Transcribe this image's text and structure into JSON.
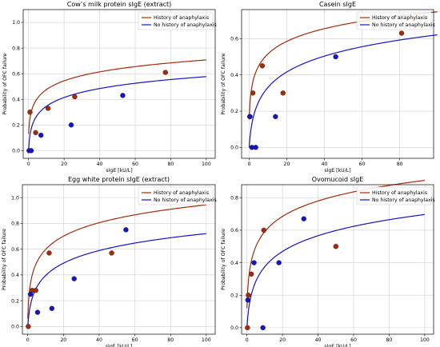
{
  "chart_data": [
    {
      "type": "scatter",
      "title": "Cow’s milk protein sIgE (extract)",
      "xlabel": "sIgE [kU/L]",
      "ylabel": "Probability of OFC failure",
      "xlim": [
        -3,
        105
      ],
      "ylim": [
        -0.06,
        1.1
      ],
      "xticks": [
        "0",
        "20",
        "40",
        "60",
        "80",
        "100"
      ],
      "yticks": [
        "0.0",
        "0.2",
        "0.4",
        "0.6",
        "0.8",
        "1.0"
      ],
      "grid": true,
      "legend_position": "top-right",
      "series": [
        {
          "name": "History of anaphylaxis",
          "color": "#a52a0a",
          "curve": {
            "a": 0.13,
            "b": 0.102,
            "x0": 0.35
          },
          "points": [
            {
              "x": 0.8,
              "y": 0.3
            },
            {
              "x": 4,
              "y": 0.14
            },
            {
              "x": 11,
              "y": 0.33
            },
            {
              "x": 26,
              "y": 0.42
            },
            {
              "x": 77,
              "y": 0.61
            }
          ]
        },
        {
          "name": "No history of anaphylaxis",
          "color": "#1414c8",
          "curve": {
            "a": 0.0,
            "b": 0.102,
            "x0": 0.35
          },
          "points": [
            {
              "x": 0.3,
              "y": 0.0
            },
            {
              "x": 1.5,
              "y": 0.0
            },
            {
              "x": 7,
              "y": 0.12
            },
            {
              "x": 24,
              "y": 0.2
            },
            {
              "x": 53,
              "y": 0.43
            }
          ]
        }
      ]
    },
    {
      "type": "scatter",
      "title": "Casein sIgE",
      "xlabel": "sIgE [kU/L]",
      "ylabel": "Probability of OFC failure",
      "xlim": [
        -4,
        98
      ],
      "ylim": [
        -0.06,
        0.76
      ],
      "xticks": [
        "0",
        "20",
        "40",
        "60",
        "80"
      ],
      "yticks": [
        "0.0",
        "0.2",
        "0.4",
        "0.6"
      ],
      "grid": true,
      "legend_position": "top-right",
      "series": [
        {
          "name": "History of anaphylaxis",
          "color": "#a52a0a",
          "curve": {
            "a": 0.155,
            "b": 0.102,
            "x0": 0.3
          },
          "points": [
            {
              "x": 0.3,
              "y": 0.17
            },
            {
              "x": 2,
              "y": 0.3
            },
            {
              "x": 7,
              "y": 0.45
            },
            {
              "x": 18,
              "y": 0.3
            },
            {
              "x": 81,
              "y": 0.63
            }
          ]
        },
        {
          "name": "No history of anaphylaxis",
          "color": "#1414c8",
          "curve": {
            "a": 0.0,
            "b": 0.13,
            "x0": 0.85
          },
          "points": [
            {
              "x": 0.5,
              "y": 0.17
            },
            {
              "x": 1.5,
              "y": 0.0
            },
            {
              "x": 3.5,
              "y": 0.0
            },
            {
              "x": 14,
              "y": 0.17
            },
            {
              "x": 46,
              "y": 0.5
            }
          ]
        }
      ]
    },
    {
      "type": "scatter",
      "title": "Egg white protein sIgE (extract)",
      "xlabel": "sIgE [kU/L]",
      "ylabel": "Probability of OFC failure",
      "xlim": [
        -3,
        105
      ],
      "ylim": [
        -0.06,
        1.1
      ],
      "xticks": [
        "0",
        "20",
        "40",
        "60",
        "80",
        "100"
      ],
      "yticks": [
        "0.0",
        "0.2",
        "0.4",
        "0.6",
        "0.8",
        "1.0"
      ],
      "grid": true,
      "legend_position": "top-right",
      "series": [
        {
          "name": "History of anaphylaxis",
          "color": "#a52a0a",
          "curve": {
            "a": 0.06,
            "b": 0.152,
            "x0": 0.3
          },
          "points": [
            {
              "x": 0.3,
              "y": 0.0
            },
            {
              "x": 2.5,
              "y": 0.28
            },
            {
              "x": 4.5,
              "y": 0.28
            },
            {
              "x": 12,
              "y": 0.57
            },
            {
              "x": 47,
              "y": 0.57
            }
          ]
        },
        {
          "name": "No history of anaphylaxis",
          "color": "#1414c8",
          "curve": {
            "a": 0.0,
            "b": 0.145,
            "x0": 0.7
          },
          "points": [
            {
              "x": 1.5,
              "y": 0.25
            },
            {
              "x": 5.5,
              "y": 0.11
            },
            {
              "x": 13.5,
              "y": 0.14
            },
            {
              "x": 26,
              "y": 0.37
            },
            {
              "x": 55,
              "y": 0.75
            }
          ]
        }
      ]
    },
    {
      "type": "scatter",
      "title": "Ovomucoid sIgE",
      "xlabel": "sIgE [kU/L]",
      "ylabel": "Probability of OFC failure",
      "xlim": [
        -3,
        105
      ],
      "ylim": [
        -0.04,
        0.88
      ],
      "xticks": [
        "0",
        "20",
        "40",
        "60",
        "80",
        "100"
      ],
      "yticks": [
        "0.0",
        "0.2",
        "0.4",
        "0.6",
        "0.8"
      ],
      "grid": true,
      "legend_position": "top-right",
      "series": [
        {
          "name": "History of anaphylaxis",
          "color": "#a52a0a",
          "curve": {
            "a": 0.12,
            "b": 0.139,
            "x0": 0.35
          },
          "points": [
            {
              "x": 0.3,
              "y": 0.0
            },
            {
              "x": 0.8,
              "y": 0.2
            },
            {
              "x": 2.5,
              "y": 0.33
            },
            {
              "x": 9.5,
              "y": 0.6
            },
            {
              "x": 50,
              "y": 0.5
            }
          ]
        },
        {
          "name": "No history of anaphylaxis",
          "color": "#1414c8",
          "curve": {
            "a": 0.0,
            "b": 0.144,
            "x0": 0.8
          },
          "points": [
            {
              "x": 0.5,
              "y": 0.17
            },
            {
              "x": 4,
              "y": 0.4
            },
            {
              "x": 9,
              "y": 0.0
            },
            {
              "x": 18,
              "y": 0.4
            },
            {
              "x": 32,
              "y": 0.67
            }
          ]
        }
      ]
    }
  ]
}
